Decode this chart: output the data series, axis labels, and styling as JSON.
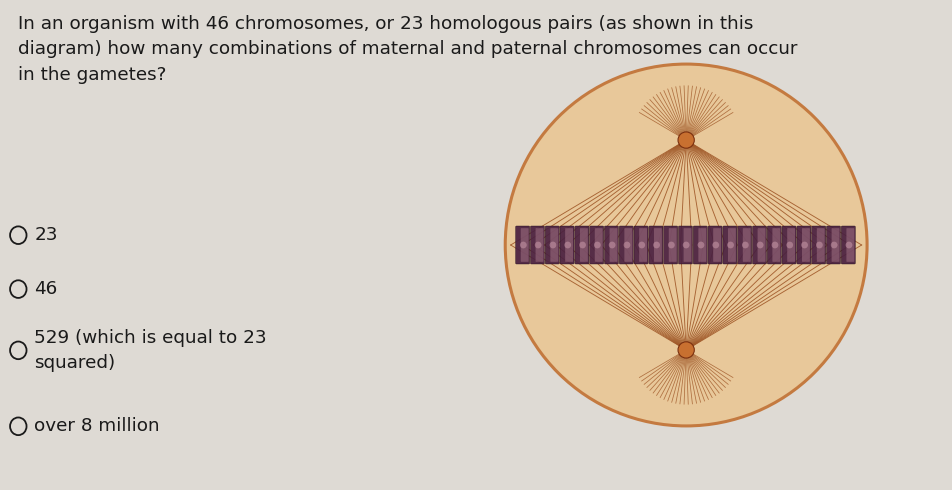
{
  "bg_color": "#dedad4",
  "question_text": "In an organism with 46 chromosomes, or 23 homologous pairs (as shown in this\ndiagram) how many combinations of maternal and paternal chromosomes can occur\nin the gametes?",
  "options": [
    "23",
    "46",
    "529 (which is equal to 23\nsquared)",
    "over 8 million"
  ],
  "question_font_size": 13.2,
  "option_font_size": 13.2,
  "text_color": "#1a1a1a",
  "circle_outer_color": "#c47a40",
  "circle_fill_color": "#e8c89a",
  "spindle_color": "#a05828",
  "chromosome_dark": "#4a2040",
  "chromosome_mid": "#7a4060",
  "chromosome_light": "#b08090",
  "pole_dot_color": "#c87030",
  "pole_rect_color": "#8a4820"
}
